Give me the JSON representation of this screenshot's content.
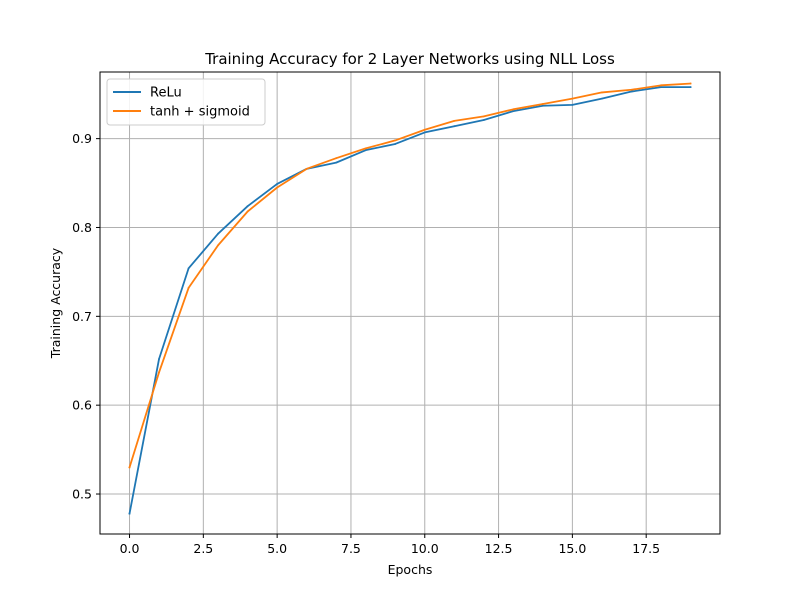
{
  "chart_data": {
    "type": "line",
    "title": "Training Accuracy for 2 Layer Networks using NLL Loss",
    "xlabel": "Epochs",
    "ylabel": "Training Accuracy",
    "xlim": [
      -1,
      20
    ],
    "ylim": [
      0.455,
      0.975
    ],
    "xticks": [
      0.0,
      2.5,
      5.0,
      7.5,
      10.0,
      12.5,
      15.0,
      17.5
    ],
    "xtick_labels": [
      "0.0",
      "2.5",
      "5.0",
      "7.5",
      "10.0",
      "12.5",
      "15.0",
      "17.5"
    ],
    "yticks": [
      0.5,
      0.6,
      0.7,
      0.8,
      0.9
    ],
    "ytick_labels": [
      "0.5",
      "0.6",
      "0.7",
      "0.8",
      "0.9"
    ],
    "grid": true,
    "legend_position": "top-left",
    "x": [
      0,
      1,
      2,
      3,
      4,
      5,
      6,
      7,
      8,
      9,
      10,
      11,
      12,
      13,
      14,
      15,
      16,
      17,
      18,
      19
    ],
    "series": [
      {
        "name": "ReLu",
        "color": "#1f77b4",
        "values": [
          0.478,
          0.652,
          0.754,
          0.793,
          0.824,
          0.849,
          0.866,
          0.873,
          0.887,
          0.894,
          0.907,
          0.914,
          0.921,
          0.931,
          0.937,
          0.938,
          0.945,
          0.953,
          0.958,
          0.958
        ]
      },
      {
        "name": "tanh + sigmoid",
        "color": "#ff7f0e",
        "values": [
          0.53,
          0.637,
          0.732,
          0.78,
          0.818,
          0.845,
          0.866,
          0.878,
          0.889,
          0.898,
          0.91,
          0.92,
          0.925,
          0.933,
          0.939,
          0.945,
          0.952,
          0.955,
          0.96,
          0.962
        ]
      }
    ]
  }
}
